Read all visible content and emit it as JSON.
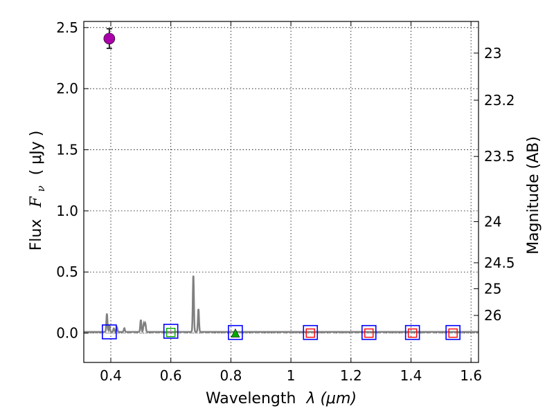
{
  "chart_data": {
    "type": "scatter",
    "title": "",
    "xlabel": "Wavelength",
    "xlabel_math": "λ (μm)",
    "ylabel": "Flux",
    "ylabel_math_symbol": "F",
    "ylabel_math_sub": "ν",
    "ylabel_unit": "( μJy )",
    "y2label": "Magnitude (AB)",
    "xlim": [
      0.31,
      1.625
    ],
    "ylim": [
      -0.24,
      2.55
    ],
    "grid": true,
    "x_ticks": [
      {
        "value": 0.4,
        "label": "0.4"
      },
      {
        "value": 0.6,
        "label": "0.6"
      },
      {
        "value": 0.8,
        "label": "0.8"
      },
      {
        "value": 1.0,
        "label": "1"
      },
      {
        "value": 1.2,
        "label": "1.2"
      },
      {
        "value": 1.4,
        "label": "1.4"
      },
      {
        "value": 1.6,
        "label": "1.6"
      }
    ],
    "y_ticks": [
      {
        "value": 0.0,
        "label": "0.0"
      },
      {
        "value": 0.5,
        "label": "0.5"
      },
      {
        "value": 1.0,
        "label": "1.0"
      },
      {
        "value": 1.5,
        "label": "1.5"
      },
      {
        "value": 2.0,
        "label": "2.0"
      },
      {
        "value": 2.5,
        "label": "2.5"
      }
    ],
    "y2_ticks": [
      {
        "mag": 23,
        "label": "23"
      },
      {
        "mag": 23.2,
        "label": "23.2"
      },
      {
        "mag": 23.5,
        "label": "23.5"
      },
      {
        "mag": 24,
        "label": "24"
      },
      {
        "mag": 24.5,
        "label": "24.5"
      },
      {
        "mag": 25,
        "label": "25"
      },
      {
        "mag": 26,
        "label": "26"
      }
    ],
    "colors": {
      "spectrum": "#808080",
      "model_box": "#0000ff",
      "observed_box": "#ff0000",
      "green_box": "#00aa00",
      "detection": "#aa00aa",
      "triangle": "#00aa00",
      "grid": "#000000"
    },
    "series": [
      {
        "name": "detection",
        "marker": "circle",
        "points": [
          {
            "x": 0.395,
            "y": 2.41,
            "yerr": 0.08
          }
        ]
      },
      {
        "name": "model_photometry",
        "marker": "square_open",
        "points": [
          {
            "x": 0.395,
            "y": 0.01
          },
          {
            "x": 0.6,
            "y": 0.015
          },
          {
            "x": 0.815,
            "y": 0.005
          },
          {
            "x": 1.065,
            "y": 0.005
          },
          {
            "x": 1.26,
            "y": 0.005
          },
          {
            "x": 1.405,
            "y": 0.005
          },
          {
            "x": 1.54,
            "y": 0.005
          }
        ]
      },
      {
        "name": "observed_photometry",
        "marker": "square_open_small",
        "points": [
          {
            "x": 0.6,
            "y": 0.005,
            "color": "green_box"
          },
          {
            "x": 1.065,
            "y": 0.0,
            "color": "observed_box"
          },
          {
            "x": 1.26,
            "y": 0.0,
            "color": "observed_box"
          },
          {
            "x": 1.405,
            "y": 0.0,
            "color": "observed_box"
          },
          {
            "x": 1.54,
            "y": 0.0,
            "color": "observed_box"
          }
        ]
      },
      {
        "name": "upper_limit",
        "marker": "triangle",
        "points": [
          {
            "x": 0.815,
            "y": -0.005
          }
        ]
      },
      {
        "name": "model_spectrum",
        "marker": "line",
        "continuum": 0.01,
        "lines": [
          {
            "x": 0.387,
            "peak": 0.15
          },
          {
            "x": 0.395,
            "peak": 0.05
          },
          {
            "x": 0.41,
            "peak": 0.03
          },
          {
            "x": 0.42,
            "peak": 0.04
          },
          {
            "x": 0.445,
            "peak": 0.03
          },
          {
            "x": 0.5,
            "peak": 0.1
          },
          {
            "x": 0.51,
            "peak": 0.07
          },
          {
            "x": 0.515,
            "peak": 0.07
          },
          {
            "x": 0.675,
            "peak": 0.47
          },
          {
            "x": 0.692,
            "peak": 0.19
          }
        ]
      }
    ]
  }
}
